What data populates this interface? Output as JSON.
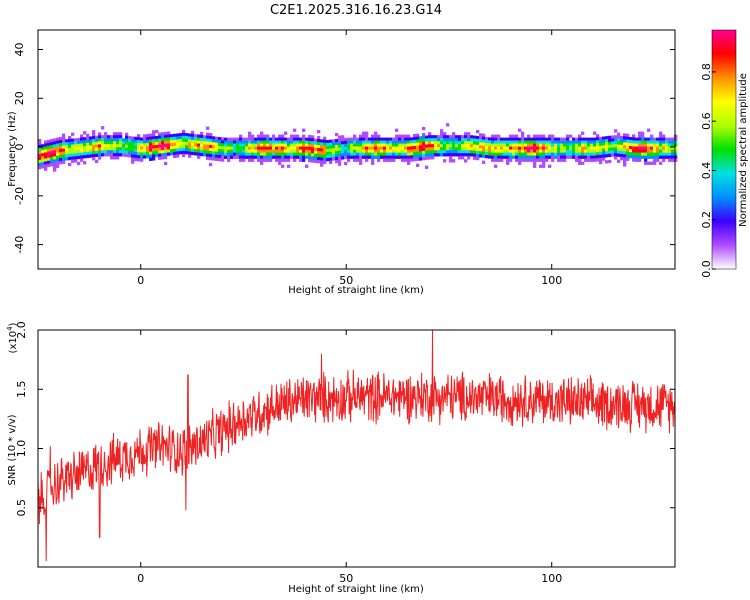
{
  "title": "C2E1.2025.316.16.23.G14",
  "chart_data": [
    {
      "type": "heatmap",
      "xlabel": "Height of straight line (km)",
      "ylabel": "Frequency (Hz)",
      "xlim": [
        -25,
        130
      ],
      "ylim": [
        -50,
        48
      ],
      "xticks": [
        0,
        50,
        100
      ],
      "yticks": [
        40,
        20,
        0,
        -20,
        -40
      ],
      "colorbar": {
        "label": "Normalized spectral amplitude",
        "range": [
          0.0,
          0.97
        ],
        "ticks": [
          "0.0",
          "0.2",
          "0.4",
          "0.6",
          "0.8"
        ],
        "colors": [
          "#ffffff",
          "#b04cff",
          "#3b00ff",
          "#0090ff",
          "#00e0e0",
          "#00e000",
          "#b0ff00",
          "#ffff00",
          "#ff9000",
          "#ff0000",
          "#ff0090"
        ]
      },
      "ridge_center_hz": [
        [
          -25,
          -3
        ],
        [
          -20,
          -1
        ],
        [
          -15,
          0
        ],
        [
          -10,
          1
        ],
        [
          -5,
          1
        ],
        [
          0,
          0
        ],
        [
          5,
          1
        ],
        [
          10,
          2
        ],
        [
          15,
          1
        ],
        [
          20,
          0
        ],
        [
          25,
          0
        ],
        [
          30,
          0
        ],
        [
          35,
          0
        ],
        [
          40,
          0
        ],
        [
          45,
          -1
        ],
        [
          50,
          0
        ],
        [
          55,
          0
        ],
        [
          60,
          0
        ],
        [
          65,
          0
        ],
        [
          70,
          1
        ],
        [
          75,
          1
        ],
        [
          80,
          1
        ],
        [
          85,
          0
        ],
        [
          90,
          0
        ],
        [
          95,
          0
        ],
        [
          100,
          0
        ],
        [
          105,
          0
        ],
        [
          110,
          0
        ],
        [
          115,
          1
        ],
        [
          120,
          0
        ],
        [
          125,
          0
        ],
        [
          130,
          0
        ]
      ],
      "ridge_halfwidth_hz": 4
    },
    {
      "type": "line",
      "xlabel": "Height of straight line (km)",
      "ylabel": "SNR (10 * v/v)",
      "yscale_label": "(x10",
      "yscale_exp": "4",
      "xlim": [
        -25,
        130
      ],
      "ylim": [
        0,
        2.0
      ],
      "xticks": [
        0,
        50,
        100
      ],
      "yticks": [
        "0.5",
        "1.0",
        "1.5",
        "2.0"
      ],
      "series": [
        {
          "color": "#ee2222",
          "trend": [
            [
              -25,
              0.55
            ],
            [
              -20,
              0.72
            ],
            [
              -15,
              0.78
            ],
            [
              -10,
              0.86
            ],
            [
              -5,
              0.92
            ],
            [
              0,
              0.98
            ],
            [
              5,
              1.02
            ],
            [
              10,
              0.98
            ],
            [
              15,
              1.05
            ],
            [
              20,
              1.15
            ],
            [
              25,
              1.25
            ],
            [
              30,
              1.32
            ],
            [
              35,
              1.38
            ],
            [
              40,
              1.42
            ],
            [
              50,
              1.43
            ],
            [
              60,
              1.44
            ],
            [
              70,
              1.44
            ],
            [
              80,
              1.43
            ],
            [
              90,
              1.42
            ],
            [
              100,
              1.4
            ],
            [
              110,
              1.38
            ],
            [
              120,
              1.37
            ],
            [
              130,
              1.36
            ]
          ],
          "noise_amplitude": 0.18,
          "extremes": [
            [
              -23,
              0.05
            ],
            [
              -22,
              1.02
            ],
            [
              -10,
              0.25
            ],
            [
              11,
              0.48
            ],
            [
              11.5,
              1.62
            ],
            [
              71,
              2.0
            ],
            [
              44,
              1.8
            ]
          ]
        }
      ]
    }
  ]
}
